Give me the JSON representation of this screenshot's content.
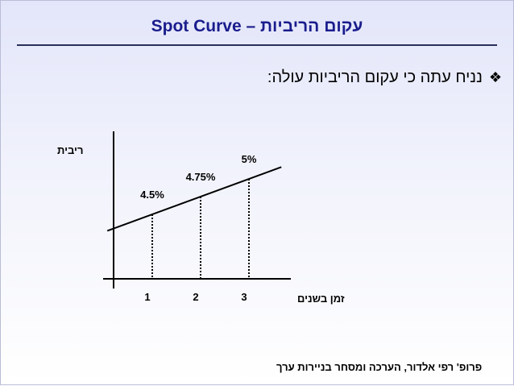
{
  "title": "עקום הריביות – Spot Curve",
  "bullet": {
    "icon": "diamond-bullet-icon",
    "text": "נניח עתה כי עקום הריביות עולה:"
  },
  "chart_data": {
    "type": "line",
    "title": "",
    "xlabel": "זמן בשנים",
    "ylabel": "ריבית",
    "x": [
      1,
      2,
      3
    ],
    "x_tick_labels": [
      "1",
      "2",
      "3"
    ],
    "series": [
      {
        "values": [
          4.5,
          4.75,
          5.0
        ]
      }
    ],
    "point_labels": [
      "4.5%",
      "4.75%",
      "5%"
    ],
    "line_extends_beyond_points": true,
    "grid": false,
    "dotted_drop_lines": true
  },
  "footer": "פרופ' רפי אלדור, הערכה ומסחר בניירות ערך",
  "colors": {
    "title": "#1a1d8c",
    "background_top": "#e3e6fa",
    "rule": "#2a2f5a"
  }
}
